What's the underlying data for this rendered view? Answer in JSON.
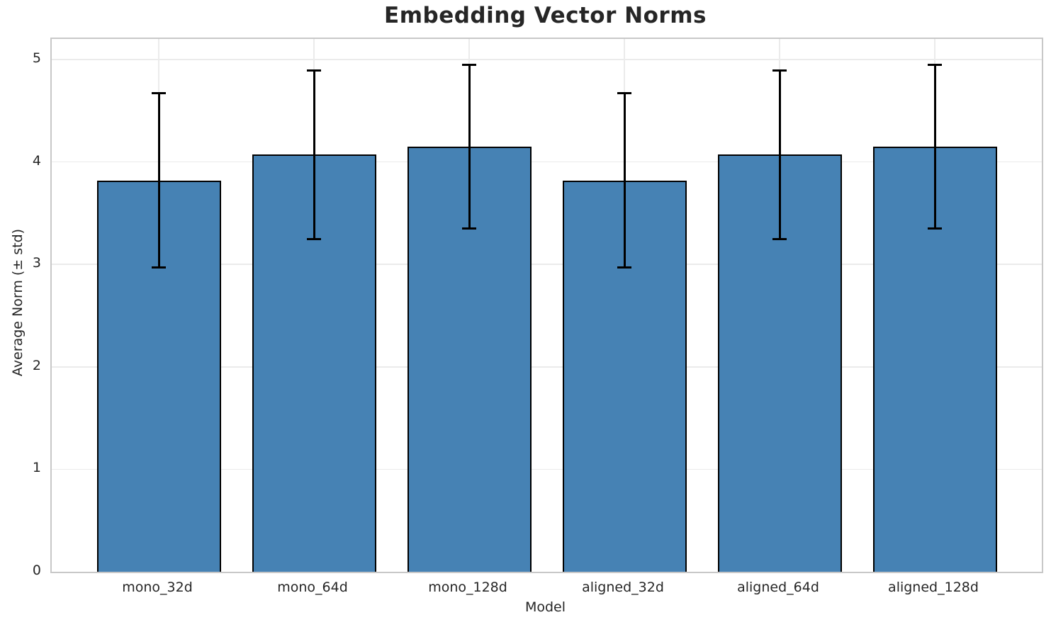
{
  "chart_data": {
    "type": "bar",
    "title": "Embedding Vector Norms",
    "xlabel": "Model",
    "ylabel": "Average Norm (± std)",
    "categories": [
      "mono_32d",
      "mono_64d",
      "mono_128d",
      "aligned_32d",
      "aligned_64d",
      "aligned_128d"
    ],
    "values": [
      3.82,
      4.07,
      4.15,
      3.82,
      4.07,
      4.15
    ],
    "errors": [
      0.85,
      0.82,
      0.8,
      0.85,
      0.82,
      0.8
    ],
    "yticks": [
      0,
      1,
      2,
      3,
      4,
      5
    ],
    "ylim": [
      0,
      5.2
    ],
    "grid": true,
    "legend_position": "none",
    "colors": {
      "bar_fill": "#4682B4",
      "bar_edge": "#000000",
      "error_bar": "#000000",
      "grid": "#EBEBEB",
      "spine": "#C8C8C8",
      "text": "#262626"
    }
  }
}
